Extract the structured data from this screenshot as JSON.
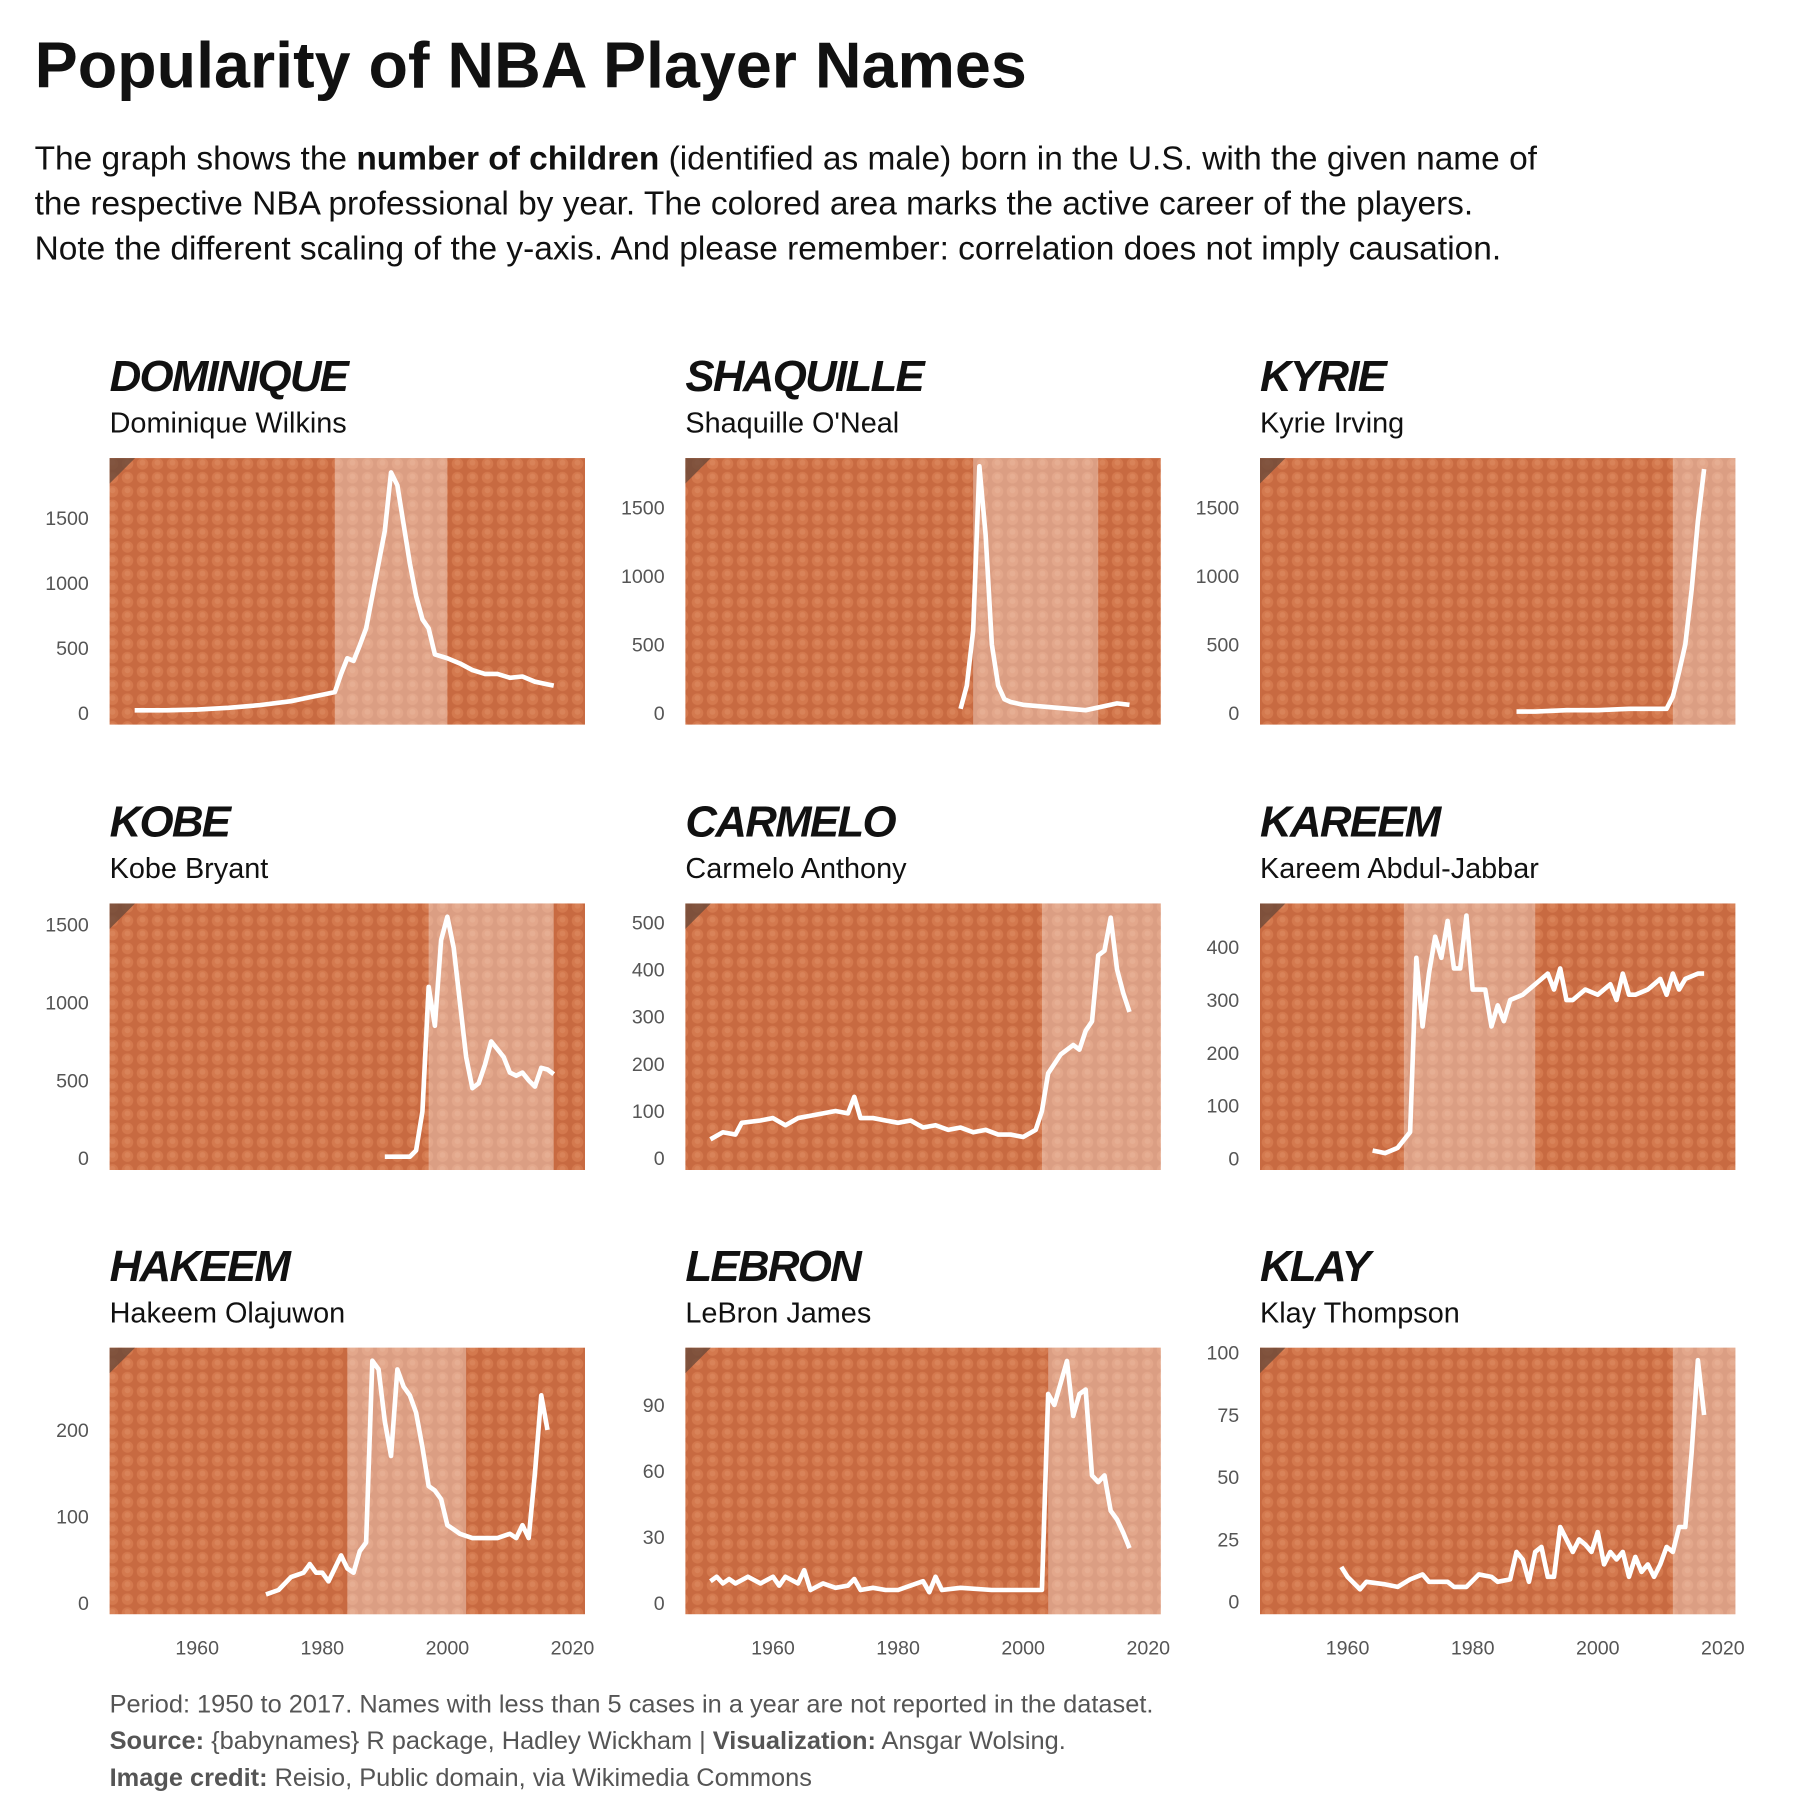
{
  "title": "Popularity of NBA Player Names",
  "description": [
    [
      "The graph shows the ",
      "number of children",
      " (identified as male) born in the U.S. with the given name of"
    ],
    [
      "the respective NBA professional by year. The colored area marks the active career of the players."
    ],
    [
      "Note the different scaling of the y-axis. And please remember: correlation does not imply causation."
    ]
  ],
  "footer": [
    [
      "Period: 1950 to 2017. Names with less than 5 cases in a year are not reported in the dataset."
    ],
    [
      "Source:",
      " {babynames} R package, Hadley Wickham | ",
      "Visualization:",
      " Ansgar Wolsing."
    ],
    [
      "Image credit:",
      " Reisio, Public domain, via Wikimedia Commons"
    ]
  ],
  "chart_data": [
    {
      "type": "line",
      "title": "DOMINIQUE",
      "subtitle": "Dominique Wilkins",
      "color": "#ffffff",
      "x": [
        1950,
        1955,
        1960,
        1965,
        1970,
        1975,
        1978,
        1980,
        1982,
        1983,
        1984,
        1985,
        1986,
        1987,
        1988,
        1989,
        1990,
        1991,
        1992,
        1993,
        1994,
        1995,
        1996,
        1997,
        1998,
        2000,
        2002,
        2004,
        2006,
        2008,
        2010,
        2012,
        2014,
        2016,
        2017
      ],
      "values": [
        20,
        20,
        25,
        40,
        60,
        90,
        120,
        140,
        160,
        300,
        420,
        400,
        520,
        650,
        900,
        1150,
        1400,
        1850,
        1750,
        1450,
        1150,
        900,
        720,
        650,
        450,
        420,
        380,
        330,
        300,
        300,
        270,
        280,
        240,
        220,
        210
      ],
      "career": [
        1982,
        2000
      ],
      "xlim": [
        1946,
        2022
      ],
      "ylim": [
        -90,
        1960
      ],
      "yticks": [
        0,
        500,
        1000,
        1500
      ]
    },
    {
      "type": "line",
      "title": "SHAQUILLE",
      "subtitle": "Shaquille O'Neal",
      "color": "#ffffff",
      "x": [
        1990,
        1991,
        1992,
        1993,
        1994,
        1995,
        1996,
        1997,
        1998,
        2000,
        2005,
        2010,
        2013,
        2015,
        2017
      ],
      "values": [
        30,
        200,
        600,
        1800,
        1300,
        500,
        200,
        100,
        80,
        60,
        40,
        20,
        50,
        70,
        60
      ],
      "career": [
        1992,
        2012
      ],
      "xlim": [
        1946,
        2022
      ],
      "ylim": [
        -85,
        1860
      ],
      "yticks": [
        0,
        500,
        1000,
        1500
      ]
    },
    {
      "type": "line",
      "title": "KYRIE",
      "subtitle": "Kyrie Irving",
      "color": "#ffffff",
      "x": [
        1987,
        1990,
        1995,
        2000,
        2005,
        2010,
        2011,
        2012,
        2013,
        2014,
        2015,
        2016,
        2017
      ],
      "values": [
        10,
        10,
        20,
        20,
        30,
        30,
        30,
        120,
        300,
        500,
        900,
        1400,
        1780
      ],
      "career": [
        2012,
        2022
      ],
      "xlim": [
        1946,
        2022
      ],
      "ylim": [
        -85,
        1860
      ],
      "yticks": [
        0,
        500,
        1000,
        1500
      ]
    },
    {
      "type": "line",
      "title": "KOBE",
      "subtitle": "Kobe Bryant",
      "color": "#ffffff",
      "x": [
        1990,
        1994,
        1995,
        1996,
        1997,
        1998,
        1999,
        2000,
        2001,
        2002,
        2003,
        2004,
        2005,
        2006,
        2007,
        2008,
        2009,
        2010,
        2011,
        2012,
        2013,
        2014,
        2015,
        2016,
        2017
      ],
      "values": [
        10,
        10,
        50,
        300,
        1100,
        850,
        1400,
        1550,
        1350,
        1000,
        650,
        450,
        480,
        600,
        750,
        700,
        650,
        550,
        530,
        550,
        500,
        460,
        580,
        570,
        540
      ],
      "career": [
        1997,
        2017
      ],
      "xlim": [
        1946,
        2022
      ],
      "ylim": [
        -75,
        1635
      ],
      "yticks": [
        0,
        500,
        1000,
        1500
      ]
    },
    {
      "type": "line",
      "title": "CARMELO",
      "subtitle": "Carmelo Anthony",
      "color": "#ffffff",
      "x": [
        1950,
        1952,
        1954,
        1955,
        1958,
        1960,
        1962,
        1964,
        1966,
        1968,
        1970,
        1972,
        1973,
        1974,
        1976,
        1978,
        1980,
        1982,
        1984,
        1986,
        1988,
        1990,
        1992,
        1994,
        1996,
        1998,
        2000,
        2002,
        2003,
        2004,
        2006,
        2008,
        2009,
        2010,
        2011,
        2012,
        2013,
        2014,
        2015,
        2016,
        2017
      ],
      "values": [
        40,
        55,
        50,
        75,
        80,
        85,
        70,
        85,
        90,
        95,
        100,
        95,
        130,
        85,
        85,
        80,
        75,
        80,
        65,
        70,
        60,
        65,
        55,
        60,
        50,
        50,
        45,
        60,
        100,
        180,
        220,
        240,
        230,
        270,
        290,
        430,
        440,
        510,
        400,
        350,
        310
      ],
      "career": [
        2003,
        2022
      ],
      "xlim": [
        1946,
        2022
      ],
      "ylim": [
        -25,
        540
      ],
      "yticks": [
        0,
        100,
        200,
        300,
        400,
        500
      ]
    },
    {
      "type": "line",
      "title": "KAREEM",
      "subtitle": "Kareem Abdul-Jabbar",
      "color": "#ffffff",
      "x": [
        1964,
        1966,
        1968,
        1970,
        1971,
        1972,
        1973,
        1974,
        1975,
        1976,
        1977,
        1978,
        1979,
        1980,
        1982,
        1983,
        1984,
        1985,
        1986,
        1988,
        1990,
        1992,
        1993,
        1994,
        1995,
        1996,
        1998,
        2000,
        2002,
        2003,
        2004,
        2005,
        2006,
        2008,
        2010,
        2011,
        2012,
        2013,
        2014,
        2016,
        2017
      ],
      "values": [
        15,
        10,
        20,
        50,
        380,
        250,
        350,
        420,
        380,
        450,
        360,
        360,
        460,
        320,
        320,
        250,
        290,
        260,
        300,
        310,
        330,
        350,
        320,
        360,
        300,
        300,
        320,
        310,
        330,
        300,
        350,
        310,
        310,
        320,
        340,
        310,
        350,
        320,
        340,
        350,
        350
      ],
      "career": [
        1969,
        1990
      ],
      "xlim": [
        1946,
        2022
      ],
      "ylim": [
        -22,
        483
      ],
      "yticks": [
        0,
        100,
        200,
        300,
        400
      ]
    },
    {
      "type": "line",
      "title": "HAKEEM",
      "subtitle": "Hakeem Olajuwon",
      "color": "#ffffff",
      "x": [
        1971,
        1973,
        1975,
        1977,
        1978,
        1979,
        1980,
        1981,
        1983,
        1984,
        1985,
        1986,
        1987,
        1988,
        1989,
        1990,
        1991,
        1992,
        1993,
        1994,
        1995,
        1996,
        1997,
        1998,
        1999,
        2000,
        2001,
        2002,
        2004,
        2006,
        2008,
        2010,
        2011,
        2012,
        2013,
        2014,
        2015,
        2016
      ],
      "values": [
        10,
        15,
        30,
        35,
        45,
        35,
        35,
        25,
        55,
        40,
        35,
        60,
        70,
        280,
        270,
        210,
        170,
        270,
        250,
        240,
        220,
        180,
        135,
        130,
        120,
        90,
        85,
        80,
        75,
        75,
        75,
        80,
        75,
        90,
        75,
        150,
        240,
        200
      ],
      "career": [
        1984,
        2003
      ],
      "xlim": [
        1946,
        2022
      ],
      "ylim": [
        -13,
        295
      ],
      "yticks": [
        0,
        100,
        200
      ],
      "xticks": [
        1960,
        1980,
        2000,
        2020
      ]
    },
    {
      "type": "line",
      "title": "LEBRON",
      "subtitle": "LeBron James",
      "color": "#ffffff",
      "x": [
        1950,
        1951,
        1952,
        1953,
        1954,
        1956,
        1958,
        1960,
        1961,
        1962,
        1964,
        1965,
        1966,
        1968,
        1970,
        1972,
        1973,
        1974,
        1976,
        1978,
        1980,
        1982,
        1984,
        1985,
        1986,
        1987,
        1990,
        1995,
        2000,
        2003,
        2004,
        2005,
        2006,
        2007,
        2008,
        2009,
        2010,
        2011,
        2012,
        2013,
        2014,
        2015,
        2016,
        2017
      ],
      "values": [
        10,
        12,
        9,
        11,
        9,
        12,
        9,
        12,
        8,
        12,
        9,
        15,
        6,
        9,
        7,
        8,
        11,
        6,
        7,
        6,
        6,
        8,
        10,
        5,
        12,
        6,
        7,
        6,
        6,
        6,
        95,
        90,
        100,
        110,
        85,
        95,
        97,
        58,
        55,
        58,
        42,
        38,
        32,
        25
      ],
      "career": [
        2004,
        2022
      ],
      "xlim": [
        1946,
        2022
      ],
      "ylim": [
        -5,
        116
      ],
      "yticks": [
        0,
        30,
        60,
        90
      ],
      "xticks": [
        1960,
        1980,
        2000,
        2020
      ]
    },
    {
      "type": "line",
      "title": "KLAY",
      "subtitle": "Klay Thompson",
      "color": "#ffffff",
      "x": [
        1959,
        1960,
        1962,
        1963,
        1966,
        1968,
        1970,
        1972,
        1973,
        1976,
        1977,
        1979,
        1981,
        1983,
        1984,
        1986,
        1987,
        1988,
        1989,
        1990,
        1991,
        1992,
        1993,
        1994,
        1995,
        1996,
        1997,
        1998,
        1999,
        2000,
        2001,
        2002,
        2003,
        2004,
        2005,
        2006,
        2007,
        2008,
        2009,
        2010,
        2011,
        2012,
        2013,
        2014,
        2015,
        2016,
        2017
      ],
      "values": [
        14,
        10,
        5,
        8,
        7,
        6,
        9,
        11,
        8,
        8,
        6,
        6,
        11,
        10,
        8,
        9,
        20,
        17,
        8,
        20,
        22,
        10,
        10,
        30,
        25,
        20,
        25,
        23,
        20,
        28,
        15,
        20,
        17,
        20,
        10,
        18,
        12,
        15,
        10,
        15,
        22,
        20,
        30,
        30,
        60,
        97,
        75
      ],
      "career": [
        2012,
        2022
      ],
      "xlim": [
        1946,
        2022
      ],
      "ylim": [
        -5,
        102
      ],
      "yticks": [
        0,
        25,
        50,
        75,
        100
      ],
      "xticks": [
        1960,
        1980,
        2000,
        2020
      ]
    }
  ]
}
